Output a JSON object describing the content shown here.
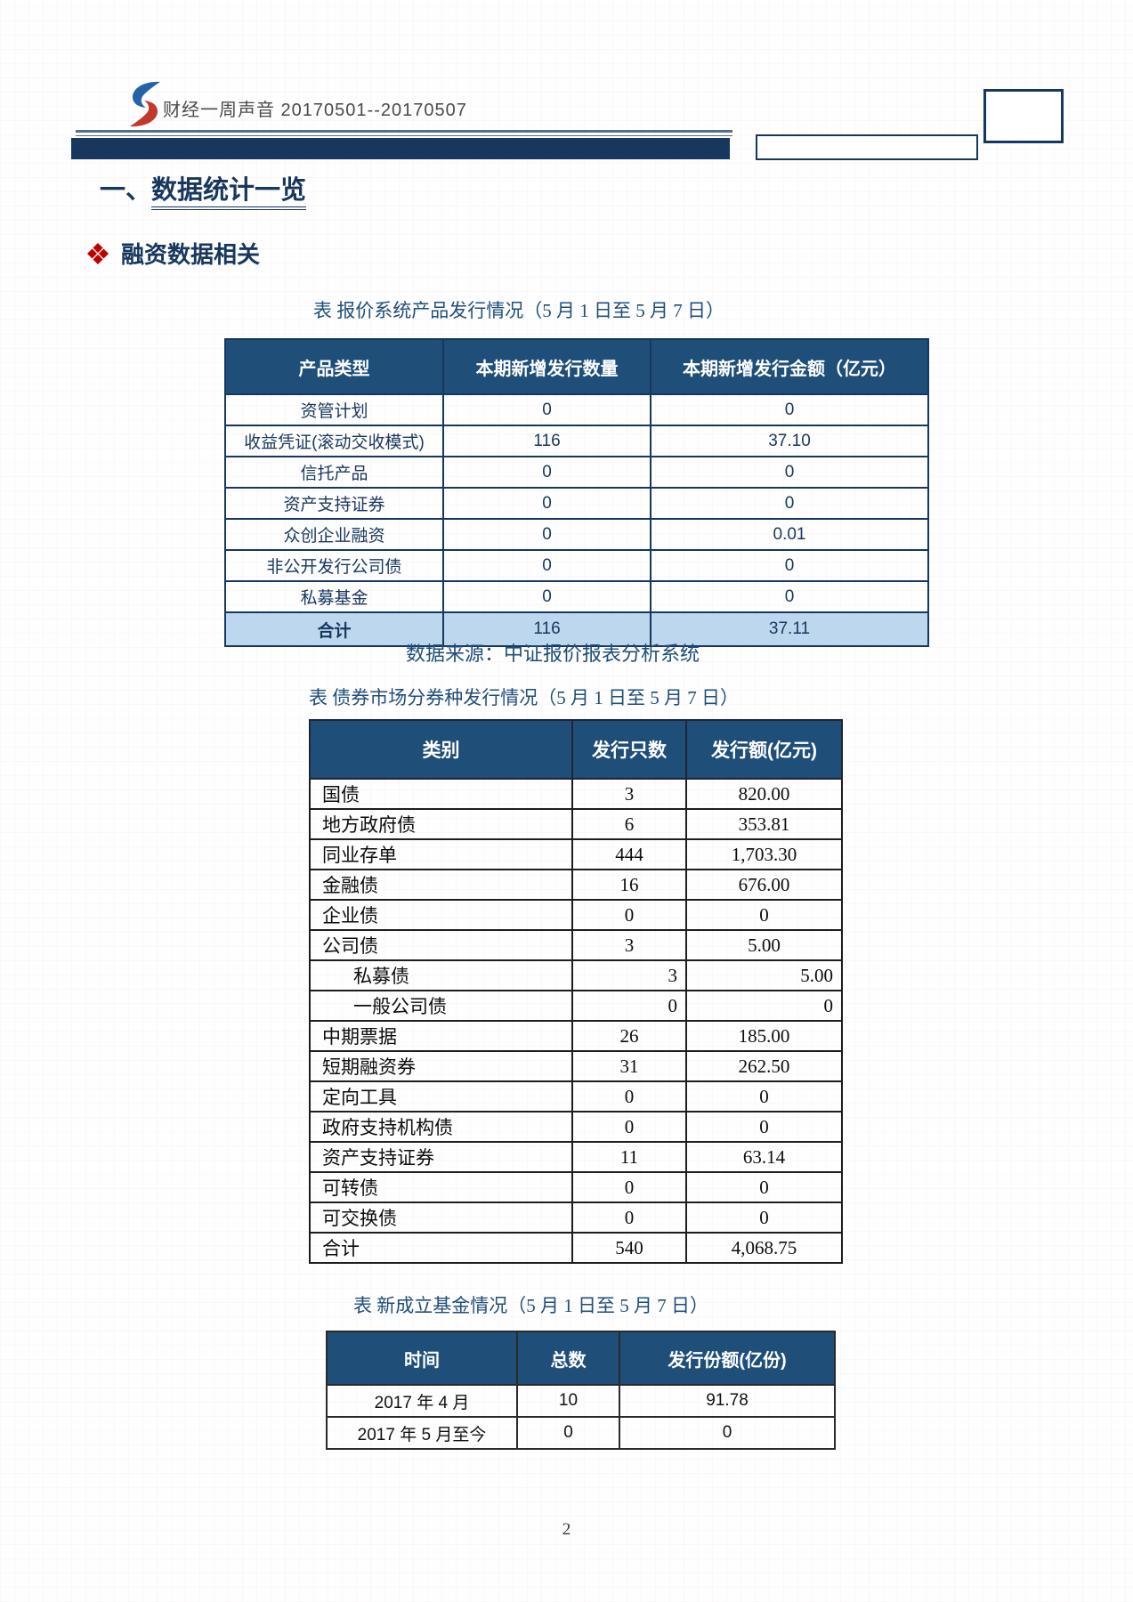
{
  "header": {
    "brand_line": "财经一周声音  20170501--20170507",
    "logo": "s-swoosh-logo"
  },
  "headings": {
    "section_prefix": "一、",
    "section_title": "数据统计一览",
    "sub_bullet": "diamond-bullet",
    "sub_title": "融资数据相关"
  },
  "table1": {
    "title": "表 报价系统产品发行情况（5 月 1 日至 5 月 7 日）",
    "columns": [
      "产品类型",
      "本期新增发行数量",
      "本期新增发行金额（亿元）"
    ],
    "rows": [
      {
        "label": "资管计划",
        "count": "0",
        "amount": "0"
      },
      {
        "label": "收益凭证(滚动交收模式)",
        "count": "116",
        "amount": "37.10"
      },
      {
        "label": "信托产品",
        "count": "0",
        "amount": "0"
      },
      {
        "label": "资产支持证券",
        "count": "0",
        "amount": "0"
      },
      {
        "label": "众创企业融资",
        "count": "0",
        "amount": "0.01"
      },
      {
        "label": "非公开发行公司债",
        "count": "0",
        "amount": "0"
      },
      {
        "label": "私募基金",
        "count": "0",
        "amount": "0"
      },
      {
        "label": "合计",
        "count": "116",
        "amount": "37.11",
        "total": true
      }
    ],
    "source": "数据来源：中证报价报表分析系统"
  },
  "table2": {
    "title": "表 债券市场分券种发行情况（5 月 1 日至 5 月 7 日）",
    "columns": [
      "类别",
      "发行只数",
      "发行额(亿元)"
    ],
    "rows": [
      {
        "label": "国债",
        "count": "3",
        "amount": "820.00"
      },
      {
        "label": "地方政府债",
        "count": "6",
        "amount": "353.81"
      },
      {
        "label": "同业存单",
        "count": "444",
        "amount": "1,703.30"
      },
      {
        "label": "金融债",
        "count": "16",
        "amount": "676.00"
      },
      {
        "label": "企业债",
        "count": "0",
        "amount": "0"
      },
      {
        "label": "公司债",
        "count": "3",
        "amount": "5.00"
      },
      {
        "label": "私募债",
        "count": "3",
        "amount": "5.00",
        "indent": true,
        "align": "right"
      },
      {
        "label": "一般公司债",
        "count": "0",
        "amount": "0",
        "indent": true,
        "align": "right"
      },
      {
        "label": "中期票据",
        "count": "26",
        "amount": "185.00"
      },
      {
        "label": "短期融资券",
        "count": "31",
        "amount": "262.50"
      },
      {
        "label": "定向工具",
        "count": "0",
        "amount": "0"
      },
      {
        "label": "政府支持机构债",
        "count": "0",
        "amount": "0"
      },
      {
        "label": "资产支持证券",
        "count": "11",
        "amount": "63.14"
      },
      {
        "label": "可转债",
        "count": "0",
        "amount": "0"
      },
      {
        "label": "可交换债",
        "count": "0",
        "amount": "0"
      },
      {
        "label": "合计",
        "count": "540",
        "amount": "4,068.75"
      }
    ]
  },
  "table3": {
    "title": "表 新成立基金情况（5 月 1 日至 5 月 7 日）",
    "columns": [
      "时间",
      "总数",
      "发行份额(亿份)"
    ],
    "rows": [
      {
        "label": "2017 年 4 月",
        "count": "10",
        "amount": "91.78"
      },
      {
        "label": "2017 年 5 月至今",
        "count": "0",
        "amount": "0"
      }
    ]
  },
  "page": {
    "number": "2"
  },
  "colors": {
    "navy_bar": "#17375E",
    "table_header_bg": "#1F4E79",
    "total_row_bg": "#BDD7EE",
    "bullet_red": "#C00000",
    "logo_blue": "#2563a8",
    "logo_red": "#c0392b"
  }
}
